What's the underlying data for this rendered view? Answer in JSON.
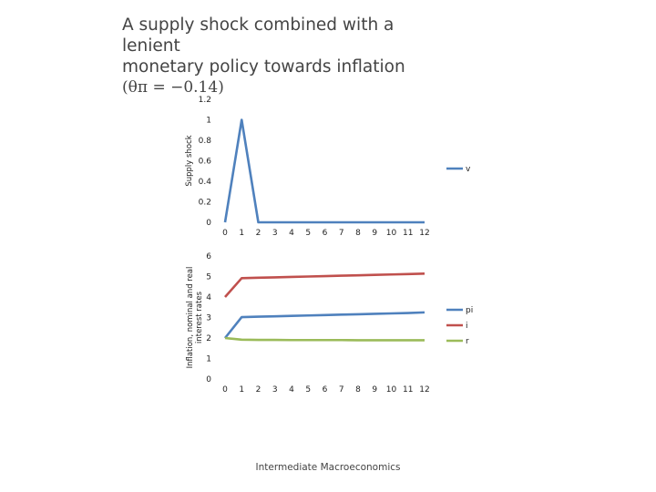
{
  "slide": {
    "title_line1": "A supply shock combined with a lenient",
    "title_line2": "monetary policy towards inflation",
    "title_formula": "(θπ = −0.14)",
    "footer": "Intermediate Macroeconomics"
  },
  "chart_data": [
    {
      "type": "line",
      "ylabel": "Supply shock",
      "xlabel": "",
      "x": [
        0,
        1,
        2,
        3,
        4,
        5,
        6,
        7,
        8,
        9,
        10,
        11,
        12
      ],
      "x_tick_labels": [
        "0",
        "1",
        "2",
        "3",
        "4",
        "5",
        "6",
        "7",
        "8",
        "9",
        "10",
        "11",
        "12"
      ],
      "y_tick_labels": [
        "0",
        "0.2",
        "0.4",
        "0.6",
        "0.8",
        "1",
        "1.2"
      ],
      "ylim": [
        0,
        1.2
      ],
      "grid": false,
      "legend": "right",
      "series": [
        {
          "name": "v",
          "color": "#4f81bd",
          "values": [
            0,
            1,
            0,
            0,
            0,
            0,
            0,
            0,
            0,
            0,
            0,
            0,
            0
          ]
        }
      ]
    },
    {
      "type": "line",
      "ylabel": "Inflation, nominal and real interest rates",
      "xlabel": "",
      "x": [
        0,
        1,
        2,
        3,
        4,
        5,
        6,
        7,
        8,
        9,
        10,
        11,
        12
      ],
      "x_tick_labels": [
        "0",
        "1",
        "2",
        "3",
        "4",
        "5",
        "6",
        "7",
        "8",
        "9",
        "10",
        "11",
        "12"
      ],
      "y_tick_labels": [
        "0",
        "1",
        "2",
        "3",
        "4",
        "5",
        "6"
      ],
      "ylim": [
        0,
        6
      ],
      "grid": false,
      "legend": "right",
      "series": [
        {
          "name": "pi",
          "color": "#4f81bd",
          "values": [
            2,
            3.02,
            3.04,
            3.06,
            3.08,
            3.1,
            3.12,
            3.14,
            3.16,
            3.18,
            3.2,
            3.22,
            3.25
          ]
        },
        {
          "name": "i",
          "color": "#c0504d",
          "values": [
            4,
            4.92,
            4.94,
            4.96,
            4.98,
            5.0,
            5.02,
            5.04,
            5.06,
            5.08,
            5.1,
            5.12,
            5.14
          ]
        },
        {
          "name": "r",
          "color": "#9bbb59",
          "values": [
            2,
            1.92,
            1.91,
            1.91,
            1.9,
            1.9,
            1.9,
            1.9,
            1.89,
            1.89,
            1.89,
            1.89,
            1.89
          ]
        }
      ]
    }
  ]
}
